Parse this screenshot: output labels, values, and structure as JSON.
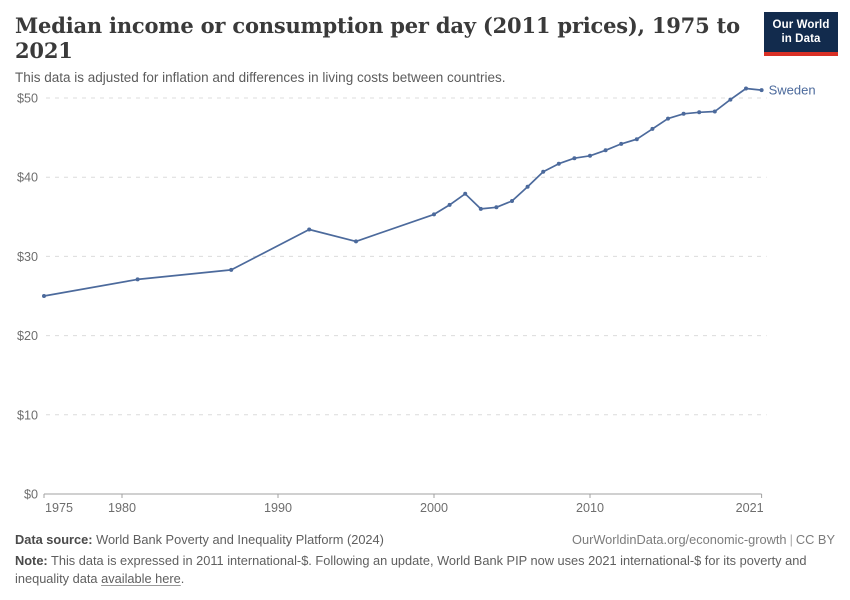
{
  "header": {
    "logo": {
      "line1": "Our World",
      "line2": "in Data",
      "bg_color": "#122b4d",
      "accent_color": "#d93025"
    }
  },
  "chart_data": {
    "type": "line",
    "title": "Median income or consumption per day (2011 prices), 1975 to 2021",
    "subtitle": "This data is adjusted for inflation and differences in living costs between countries.",
    "series": [
      {
        "name": "Sweden",
        "color": "#4c6a9c",
        "points": [
          [
            1975,
            25.0
          ],
          [
            1981,
            27.1
          ],
          [
            1987,
            28.3
          ],
          [
            1992,
            33.4
          ],
          [
            1995,
            31.9
          ],
          [
            2000,
            35.3
          ],
          [
            2001,
            36.5
          ],
          [
            2002,
            37.9
          ],
          [
            2003,
            36.0
          ],
          [
            2004,
            36.2
          ],
          [
            2005,
            37.0
          ],
          [
            2006,
            38.8
          ],
          [
            2007,
            40.7
          ],
          [
            2008,
            41.7
          ],
          [
            2009,
            42.4
          ],
          [
            2010,
            42.7
          ],
          [
            2011,
            43.4
          ],
          [
            2012,
            44.2
          ],
          [
            2013,
            44.8
          ],
          [
            2014,
            46.1
          ],
          [
            2015,
            47.4
          ],
          [
            2016,
            48.0
          ],
          [
            2017,
            48.2
          ],
          [
            2018,
            48.3
          ],
          [
            2019,
            49.8
          ],
          [
            2020,
            51.2
          ],
          [
            2021,
            51.0
          ]
        ]
      }
    ],
    "x_ticks": [
      1975,
      1980,
      1990,
      2000,
      2010,
      2021
    ],
    "y_ticks": [
      0,
      10,
      20,
      30,
      40,
      50
    ],
    "y_tick_prefix": "$",
    "xlim": [
      1975,
      2021
    ],
    "ylim": [
      0,
      52
    ],
    "xlabel": "",
    "ylabel": "",
    "grid": "horizontal-dashed",
    "legend_position": "end-of-line-label"
  },
  "footer": {
    "datasource_label": "Data source:",
    "datasource": "World Bank Poverty and Inequality Platform (2024)",
    "attribution": "OurWorldinData.org/economic-growth",
    "separator": "|",
    "license": "CC BY",
    "note_label": "Note:",
    "note_text": "This data is expressed in 2011 international-$. Following an update, World Bank PIP now uses 2021 international-$ for its poverty and inequality data",
    "note_link": "available here",
    "note_after_link": "."
  }
}
